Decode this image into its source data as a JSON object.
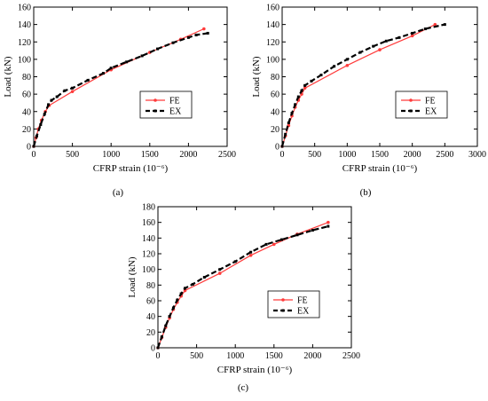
{
  "figure": {
    "panel_labels": [
      "(a)",
      "(b)",
      "(c)"
    ]
  },
  "chart_data": [
    {
      "type": "line",
      "panel": "(a)",
      "xlabel": "CFRP strain (10⁻⁶)",
      "ylabel": "Load (kN)",
      "xlim": [
        0,
        2500
      ],
      "ylim": [
        0,
        160
      ],
      "xticks": [
        0,
        500,
        1000,
        1500,
        2000,
        2500
      ],
      "yticks": [
        0,
        20,
        40,
        60,
        80,
        100,
        120,
        140,
        160
      ],
      "grid": false,
      "legend_position": "center-right",
      "series": [
        {
          "name": "FE",
          "color": "#ff3b3b",
          "style": "solid-dot",
          "x": [
            0,
            30,
            60,
            100,
            150,
            200,
            500,
            1000,
            1500,
            1900,
            2200
          ],
          "y": [
            0,
            10,
            20,
            30,
            40,
            47,
            63,
            88,
            108,
            123,
            135
          ]
        },
        {
          "name": "EX",
          "color": "#000000",
          "style": "dash-marker",
          "x": [
            0,
            40,
            90,
            140,
            190,
            230,
            300,
            400,
            500,
            700,
            900,
            1000,
            1200,
            1400,
            1600,
            1800,
            2000,
            2100,
            2250
          ],
          "y": [
            0,
            12,
            25,
            37,
            48,
            53,
            57,
            64,
            67,
            76,
            84,
            90,
            97,
            104,
            112,
            119,
            125,
            128,
            130
          ]
        }
      ]
    },
    {
      "type": "line",
      "panel": "(b)",
      "xlabel": "CFRP strain (10⁻⁶)",
      "ylabel": "Load (kN)",
      "xlim": [
        0,
        3000
      ],
      "ylim": [
        0,
        160
      ],
      "xticks": [
        0,
        500,
        1000,
        1500,
        2000,
        2500,
        3000
      ],
      "yticks": [
        0,
        20,
        40,
        60,
        80,
        100,
        120,
        140,
        160
      ],
      "grid": false,
      "legend_position": "center-right",
      "series": [
        {
          "name": "FE",
          "color": "#ff3b3b",
          "style": "solid-dot",
          "x": [
            0,
            50,
            100,
            150,
            200,
            250,
            300,
            350,
            1000,
            1500,
            2000,
            2350
          ],
          "y": [
            0,
            12,
            24,
            35,
            45,
            53,
            60,
            67,
            93,
            111,
            127,
            140
          ]
        },
        {
          "name": "EX",
          "color": "#000000",
          "style": "dash-marker",
          "x": [
            0,
            50,
            100,
            150,
            200,
            250,
            300,
            350,
            450,
            600,
            800,
            1000,
            1200,
            1400,
            1600,
            1800,
            2000,
            2200,
            2500
          ],
          "y": [
            0,
            14,
            27,
            38,
            48,
            57,
            64,
            70,
            75,
            82,
            92,
            100,
            108,
            115,
            121,
            125,
            130,
            135,
            140
          ]
        }
      ]
    },
    {
      "type": "line",
      "panel": "(c)",
      "xlabel": "CFRP strain (10⁻⁶)",
      "ylabel": "Load (kN)",
      "xlim": [
        0,
        2500
      ],
      "ylim": [
        0,
        180
      ],
      "xticks": [
        0,
        500,
        1000,
        1500,
        2000,
        2500
      ],
      "yticks": [
        0,
        20,
        40,
        60,
        80,
        100,
        120,
        140,
        160,
        180
      ],
      "grid": false,
      "legend_position": "center-right",
      "series": [
        {
          "name": "FE",
          "color": "#ff3b3b",
          "style": "solid-dot",
          "x": [
            0,
            50,
            100,
            150,
            200,
            250,
            300,
            350,
            800,
            1200,
            1500,
            1800,
            2200
          ],
          "y": [
            0,
            13,
            26,
            38,
            49,
            58,
            66,
            73,
            95,
            118,
            132,
            145,
            160
          ]
        },
        {
          "name": "EX",
          "color": "#000000",
          "style": "dash-marker",
          "x": [
            0,
            50,
            100,
            150,
            200,
            250,
            300,
            350,
            450,
            600,
            800,
            1000,
            1200,
            1400,
            1600,
            1800,
            2000,
            2200
          ],
          "y": [
            0,
            14,
            28,
            40,
            51,
            61,
            69,
            76,
            81,
            90,
            100,
            110,
            122,
            132,
            138,
            144,
            150,
            155
          ]
        }
      ]
    }
  ]
}
